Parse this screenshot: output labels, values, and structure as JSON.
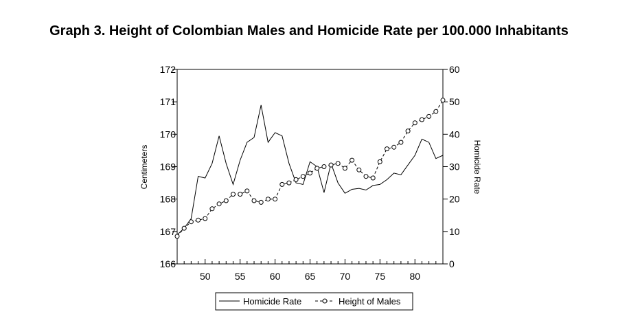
{
  "chart_data": {
    "type": "line",
    "title": "Graph 3. Height of Colombian Males and Homicide Rate per 100.000 Inhabitants",
    "xlabel": "",
    "ylabel_left": "Centimeters",
    "ylabel_right": "Homicide Rate",
    "xlim": [
      46,
      84
    ],
    "ylim_left": [
      166,
      172
    ],
    "ylim_right": [
      0,
      60
    ],
    "x_ticks": [
      50,
      55,
      60,
      65,
      70,
      75,
      80
    ],
    "y_ticks_left": [
      166,
      167,
      168,
      169,
      170,
      171,
      172
    ],
    "y_ticks_right": [
      0,
      10,
      20,
      30,
      40,
      50,
      60
    ],
    "legend_position": "bottom-center",
    "series": [
      {
        "name": "Homicide Rate",
        "axis": "right",
        "style": "solid",
        "x": [
          46,
          47,
          48,
          49,
          50,
          51,
          52,
          53,
          54,
          55,
          56,
          57,
          58,
          59,
          60,
          61,
          62,
          63,
          64,
          65,
          66,
          67,
          68,
          69,
          70,
          71,
          72,
          73,
          74,
          75,
          76,
          77,
          78,
          79,
          80,
          81,
          82,
          83,
          84
        ],
        "values": [
          9,
          11,
          14,
          27,
          26.5,
          31,
          39.5,
          31,
          24.5,
          32,
          37.5,
          39,
          49,
          37.5,
          40.5,
          39.5,
          31,
          25,
          24.5,
          31.5,
          30,
          22,
          31,
          25,
          21.8,
          23,
          23.3,
          22.8,
          24.2,
          24.5,
          26,
          28,
          27.5,
          30.5,
          33.5,
          38.5,
          37.5,
          32.5,
          33.5
        ]
      },
      {
        "name": "Height of Males",
        "axis": "left",
        "style": "dashed-circle",
        "x": [
          46,
          47,
          48,
          49,
          50,
          51,
          52,
          53,
          54,
          55,
          56,
          57,
          58,
          59,
          60,
          61,
          62,
          63,
          64,
          65,
          66,
          67,
          68,
          69,
          70,
          71,
          72,
          73,
          74,
          75,
          76,
          77,
          78,
          79,
          80,
          81,
          82,
          83,
          84
        ],
        "values": [
          166.85,
          167.1,
          167.3,
          167.35,
          167.4,
          167.7,
          167.85,
          167.95,
          168.15,
          168.15,
          168.25,
          167.95,
          167.9,
          168,
          168,
          168.45,
          168.5,
          168.6,
          168.7,
          168.8,
          168.95,
          169,
          169.05,
          169.1,
          168.95,
          169.2,
          168.9,
          168.7,
          168.65,
          169.15,
          169.55,
          169.6,
          169.75,
          170.1,
          170.35,
          170.45,
          170.55,
          170.7,
          171.05
        ]
      }
    ]
  }
}
